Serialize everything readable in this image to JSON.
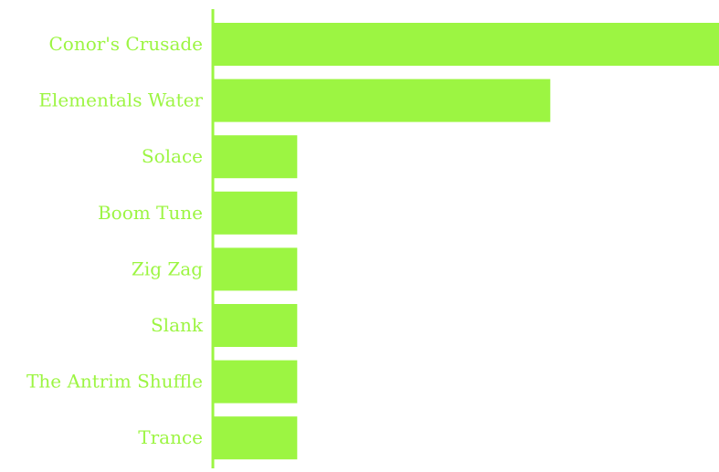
{
  "chart_data": {
    "type": "bar",
    "orientation": "horizontal",
    "categories": [
      "Conor's Crusade",
      "Elementals Water",
      "Solace",
      "Boom Tune",
      "Zig Zag",
      "Slank",
      "The Antrim Shuffle",
      "Trance"
    ],
    "values": [
      6,
      4,
      1,
      1,
      1,
      1,
      1,
      1
    ],
    "color": "#9cf542"
  }
}
